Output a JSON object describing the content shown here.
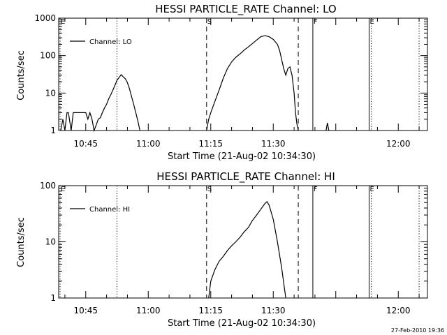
{
  "timestamp": "27-Feb-2010 19:36",
  "chart_data": [
    {
      "type": "line",
      "title": "HESSI PARTICLE_RATE Channel: LO",
      "xlabel": "Start Time (21-Aug-02 10:34:30)",
      "ylabel": "Counts/sec",
      "yscale": "log",
      "xlim": [
        "10:38:30",
        "12:07:00"
      ],
      "ylim": [
        1,
        1000
      ],
      "x_ticks": [
        "10:45",
        "11:00",
        "11:15",
        "11:30",
        "12:00"
      ],
      "y_ticks": [
        "1",
        "10",
        "100",
        "1000"
      ],
      "legend": {
        "placement": "top-left",
        "entries": [
          "Channel: LO"
        ]
      },
      "color": "#000000",
      "markers": [
        {
          "time": "10:38:50",
          "label": "E",
          "style": "dotted"
        },
        {
          "time": "10:52:30",
          "label": "",
          "style": "dotted"
        },
        {
          "time": "11:14:00",
          "label": "S",
          "style": "dashed"
        },
        {
          "time": "11:36:00",
          "label": "",
          "style": "dashed"
        },
        {
          "time": "11:39:30",
          "label": "F",
          "style": "solid"
        },
        {
          "time": "11:53:00",
          "label": "E",
          "style": "solid"
        },
        {
          "time": "11:53:30",
          "label": "",
          "style": "dotted"
        },
        {
          "time": "12:05:00",
          "label": "",
          "style": "dotted"
        }
      ],
      "series": [
        {
          "segments": [
            {
              "time": [
                "10:39:00",
                "10:39:30",
                "10:40:00",
                "10:40:30",
                "10:40:50",
                "10:41:30",
                "10:42:00",
                "10:42:30",
                "10:43:00",
                "10:43:30",
                "10:44:00",
                "10:44:30",
                "10:45:00",
                "10:45:30",
                "10:46:00",
                "10:46:30",
                "10:47:00",
                "10:47:30",
                "10:48:00",
                "10:48:30",
                "10:49:00",
                "10:49:30",
                "10:50:00",
                "10:50:30",
                "10:51:00",
                "10:51:30",
                "10:52:00",
                "10:52:30",
                "10:53:00",
                "10:53:30",
                "10:54:00",
                "10:54:30",
                "10:55:00",
                "10:55:30",
                "10:56:00",
                "10:56:30",
                "10:57:00",
                "10:57:30",
                "10:58:00"
              ],
              "values": [
                1,
                2,
                1,
                3,
                3,
                1,
                3,
                3,
                3,
                3,
                3,
                3,
                3,
                2,
                3,
                2,
                1,
                1.4,
                2,
                2.2,
                3,
                4,
                5,
                7,
                9,
                12,
                16,
                22,
                26,
                31,
                27,
                24,
                19,
                13,
                8,
                5,
                3,
                1.8,
                1
              ]
            },
            {
              "time": [
                "11:14:00",
                "11:14:30",
                "11:15:00",
                "11:16:00",
                "11:17:00",
                "11:18:00",
                "11:19:00",
                "11:20:00",
                "11:21:00",
                "11:22:00",
                "11:23:00",
                "11:24:00",
                "11:25:00",
                "11:26:00",
                "11:27:00",
                "11:28:00",
                "11:29:00",
                "11:30:00",
                "11:31:00",
                "11:31:30",
                "11:32:00",
                "11:32:30",
                "11:33:00",
                "11:33:30",
                "11:34:00",
                "11:34:30",
                "11:35:00",
                "11:35:20",
                "11:35:40",
                "11:36:00"
              ],
              "values": [
                1,
                2,
                3,
                6,
                12,
                25,
                45,
                68,
                90,
                110,
                140,
                170,
                210,
                260,
                320,
                340,
                320,
                270,
                200,
                140,
                80,
                45,
                30,
                45,
                50,
                30,
                10,
                3,
                1.5,
                1
              ]
            },
            {
              "time": [
                "11:42:40",
                "11:43:00",
                "11:43:20"
              ],
              "values": [
                1,
                1.6,
                1
              ]
            }
          ]
        }
      ]
    },
    {
      "type": "line",
      "title": "HESSI PARTICLE_RATE Channel: HI",
      "xlabel": "Start Time (21-Aug-02 10:34:30)",
      "ylabel": "Counts/sec",
      "yscale": "log",
      "xlim": [
        "10:38:30",
        "12:07:00"
      ],
      "ylim": [
        1,
        100
      ],
      "x_ticks": [
        "10:45",
        "11:00",
        "11:15",
        "11:30",
        "12:00"
      ],
      "y_ticks": [
        "1",
        "10",
        "100"
      ],
      "legend": {
        "placement": "top-left",
        "entries": [
          "Channel: HI"
        ]
      },
      "color": "#000000",
      "markers": [
        {
          "time": "10:38:50",
          "label": "E",
          "style": "dotted"
        },
        {
          "time": "10:52:30",
          "label": "",
          "style": "dotted"
        },
        {
          "time": "11:14:00",
          "label": "S",
          "style": "dashed"
        },
        {
          "time": "11:36:00",
          "label": "",
          "style": "dashed"
        },
        {
          "time": "11:39:30",
          "label": "F",
          "style": "solid"
        },
        {
          "time": "11:53:00",
          "label": "E",
          "style": "solid"
        },
        {
          "time": "11:53:30",
          "label": "",
          "style": "dotted"
        },
        {
          "time": "12:05:00",
          "label": "",
          "style": "dotted"
        }
      ],
      "series": [
        {
          "segments": [
            {
              "time": [
                "11:14:30",
                "11:15:00",
                "11:16:00",
                "11:17:00",
                "11:18:00",
                "11:19:00",
                "11:20:00",
                "11:21:00",
                "11:22:00",
                "11:23:00",
                "11:24:00",
                "11:25:00",
                "11:26:00",
                "11:27:00",
                "11:28:00",
                "11:28:30",
                "11:29:00",
                "11:30:00",
                "11:31:00",
                "11:32:00",
                "11:32:40",
                "11:33:00"
              ],
              "values": [
                1,
                2,
                3.2,
                4.5,
                5.5,
                7,
                8.5,
                10,
                12,
                15,
                18,
                24,
                30,
                38,
                48,
                52,
                45,
                25,
                10,
                3.5,
                1.5,
                1
              ]
            }
          ]
        }
      ]
    }
  ]
}
